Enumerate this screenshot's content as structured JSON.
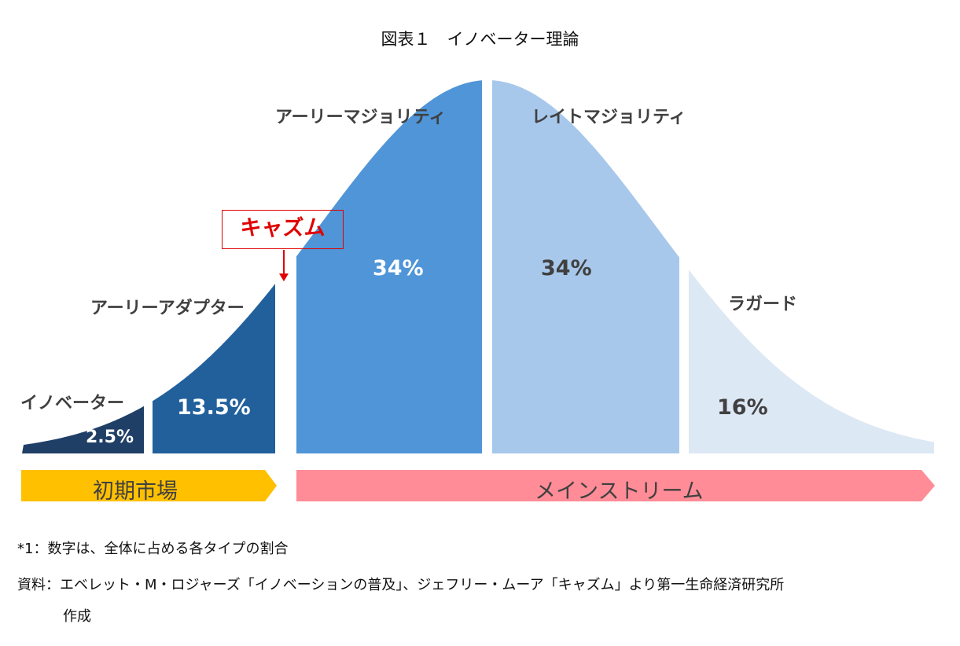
{
  "title": "図表１　イノベーター理論",
  "segments": [
    {
      "name": "イノベーター",
      "percent": "2.5%",
      "value": 2.5,
      "color": "#1f3f66"
    },
    {
      "name": "アーリーアダプター",
      "percent": "13.5%",
      "value": 13.5,
      "color": "#22609c"
    },
    {
      "name": "アーリーマジョリティ",
      "percent": "34%",
      "value": 34,
      "color": "#4f95d8"
    },
    {
      "name": "レイトマジョリティ",
      "percent": "34%",
      "value": 34,
      "color": "#a7c8eb"
    },
    {
      "name": "ラガード",
      "percent": "16%",
      "value": 16,
      "color": "#dde8f5"
    }
  ],
  "chasm": {
    "label": "キャズム",
    "color": "#e00000"
  },
  "bands": [
    {
      "label": "初期市場",
      "color": "#ffc000"
    },
    {
      "label": "メインストリーム",
      "color": "#ff8c96"
    }
  ],
  "notes": {
    "note1": "*1：数字は、全体に占める各タイプの割合",
    "source": "資料：エベレット・M・ロジャーズ「イノベーションの普及」、ジェフリー・ムーア「キャズム」より第一生命経済研究所",
    "source_cont": "作成"
  }
}
